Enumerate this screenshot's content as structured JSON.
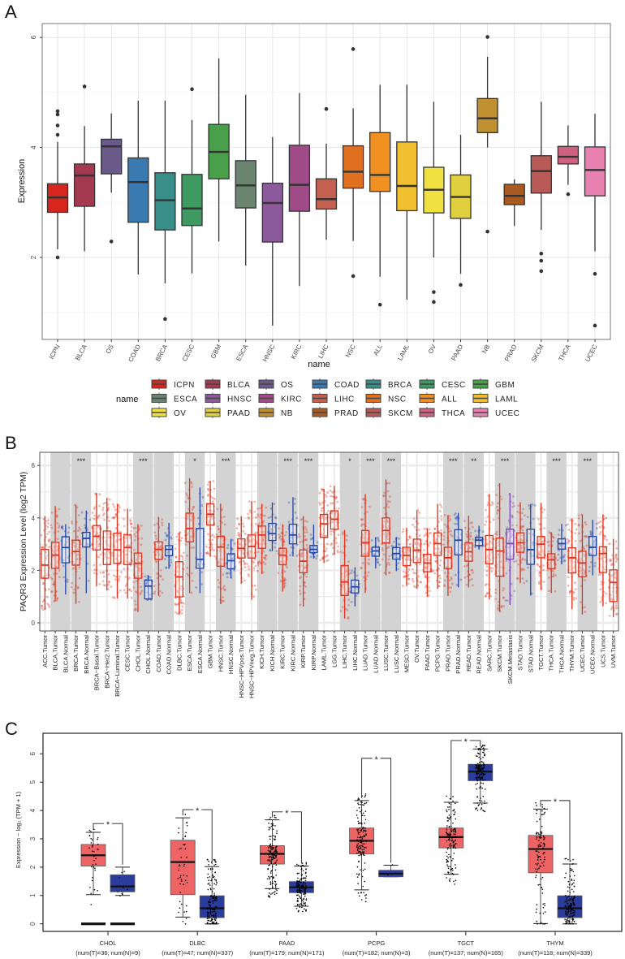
{
  "panels": {
    "a": "A",
    "b": "B",
    "c": "C"
  },
  "chart_data": [
    {
      "panel": "A",
      "type": "box",
      "xlabel": "name",
      "ylabel": "Expression",
      "ylim": [
        0.5,
        6.25
      ],
      "yticks": [
        "2",
        "4",
        "6"
      ],
      "grid": true,
      "legend": {
        "title": "name",
        "position": "bottom"
      },
      "categories": [
        "ICPN",
        "BLCA",
        "OS",
        "COAD",
        "BRCA",
        "CESC",
        "GBM",
        "ESCA",
        "HNSC",
        "KIRC",
        "LIHC",
        "NSC",
        "ALL",
        "LAML",
        "OV",
        "PAAD",
        "NB",
        "PRAD",
        "SKCM",
        "THCA",
        "UCEC"
      ],
      "colors": [
        "#d7261e",
        "#a43a50",
        "#6a5a8a",
        "#3a7ab0",
        "#3a8e8a",
        "#3e9a60",
        "#4aa04a",
        "#6a8470",
        "#8a5a9a",
        "#a04a88",
        "#c46050",
        "#e07020",
        "#f09020",
        "#f0c030",
        "#f0e040",
        "#e0d040",
        "#c09030",
        "#a85a20",
        "#b85a55",
        "#d06080",
        "#e880b0"
      ],
      "boxes": [
        {
          "whisker_low": 2.15,
          "q1": 2.82,
          "median": 3.09,
          "q3": 3.34,
          "whisker_high": 4.1,
          "outliers": [
            4.66,
            4.6,
            4.4,
            4.23,
            2.0
          ]
        },
        {
          "whisker_low": 2.11,
          "q1": 2.93,
          "median": 3.49,
          "q3": 3.7,
          "whisker_high": 4.39,
          "outliers": [
            5.11
          ]
        },
        {
          "whisker_low": 3.18,
          "q1": 3.52,
          "median": 4.02,
          "q3": 4.15,
          "whisker_high": 4.62,
          "outliers": [
            2.29
          ]
        },
        {
          "whisker_low": 1.69,
          "q1": 2.64,
          "median": 3.37,
          "q3": 3.81,
          "whisker_high": 4.85,
          "outliers": []
        },
        {
          "whisker_low": 1.53,
          "q1": 2.5,
          "median": 3.04,
          "q3": 3.54,
          "whisker_high": 4.85,
          "outliers": [
            0.88
          ]
        },
        {
          "whisker_low": 1.71,
          "q1": 2.58,
          "median": 2.89,
          "q3": 3.51,
          "whisker_high": 4.5,
          "outliers": [
            5.06
          ]
        },
        {
          "whisker_low": 2.29,
          "q1": 3.43,
          "median": 3.92,
          "q3": 4.42,
          "whisker_high": 5.62,
          "outliers": []
        },
        {
          "whisker_low": 1.85,
          "q1": 2.9,
          "median": 3.31,
          "q3": 3.76,
          "whisker_high": 4.96,
          "outliers": []
        },
        {
          "whisker_low": 0.76,
          "q1": 2.28,
          "median": 2.99,
          "q3": 3.35,
          "whisker_high": 4.19,
          "outliers": []
        },
        {
          "whisker_low": 1.48,
          "q1": 2.84,
          "median": 3.32,
          "q3": 4.04,
          "whisker_high": 4.99,
          "outliers": []
        },
        {
          "whisker_low": 2.32,
          "q1": 2.88,
          "median": 3.06,
          "q3": 3.43,
          "whisker_high": 4.07,
          "outliers": [
            4.7
          ]
        },
        {
          "whisker_low": 2.3,
          "q1": 3.26,
          "median": 3.56,
          "q3": 4.03,
          "whisker_high": 4.71,
          "outliers": [
            5.79,
            1.66
          ]
        },
        {
          "whisker_low": 1.65,
          "q1": 3.2,
          "median": 3.5,
          "q3": 4.27,
          "whisker_high": 5.14,
          "outliers": [
            1.14
          ]
        },
        {
          "whisker_low": 1.23,
          "q1": 2.85,
          "median": 3.3,
          "q3": 4.1,
          "whisker_high": 5.14,
          "outliers": []
        },
        {
          "whisker_low": 2.0,
          "q1": 2.81,
          "median": 3.23,
          "q3": 3.64,
          "whisker_high": 4.83,
          "outliers": [
            1.37,
            1.19
          ]
        },
        {
          "whisker_low": 1.7,
          "q1": 2.71,
          "median": 3.1,
          "q3": 3.5,
          "whisker_high": 4.23,
          "outliers": [
            1.5
          ]
        },
        {
          "whisker_low": 4.0,
          "q1": 4.27,
          "median": 4.53,
          "q3": 4.89,
          "whisker_high": 5.65,
          "outliers": [
            6.01,
            2.47
          ]
        },
        {
          "whisker_low": 2.57,
          "q1": 2.96,
          "median": 3.12,
          "q3": 3.33,
          "whisker_high": 3.42,
          "outliers": []
        },
        {
          "whisker_low": 2.5,
          "q1": 3.17,
          "median": 3.57,
          "q3": 3.85,
          "whisker_high": 4.83,
          "outliers": [
            2.07,
            1.94,
            1.75
          ]
        },
        {
          "whisker_low": 3.32,
          "q1": 3.7,
          "median": 3.83,
          "q3": 4.02,
          "whisker_high": 4.4,
          "outliers": [
            3.15
          ]
        },
        {
          "whisker_low": 2.11,
          "q1": 3.12,
          "median": 3.59,
          "q3": 4.01,
          "whisker_high": 4.61,
          "outliers": [
            1.7,
            0.76
          ]
        }
      ]
    },
    {
      "panel": "B",
      "type": "box",
      "ylabel": "PAQR3 Expression Level (log2 TPM)",
      "ylim": [
        -0.3,
        6.2
      ],
      "yticks": [
        "0",
        "2",
        "4",
        "6"
      ],
      "grid": true,
      "group_colors": {
        "tumor": "#e0321c",
        "normal": "#2244a8",
        "metastasis": "#7a44b0"
      },
      "shade_color": "#d3d3d3",
      "categories": [
        "ACC.Tumor",
        "BLCA.Tumor",
        "BLCA.Normal",
        "BRCA.Tumor",
        "BRCA.Normal",
        "BRCA−Basal.Tumor",
        "BRCA−Her2.Tumor",
        "BRCA−Luminal.Tumor",
        "CESC.Tumor",
        "CHOL.Tumor",
        "CHOL.Normal",
        "COAD.Tumor",
        "COAD.Normal",
        "DLBC.Tumor",
        "ESCA.Tumor",
        "ESCA.Normal",
        "GBM.Tumor",
        "HNSC.Tumor",
        "HNSC.Normal",
        "HNSC−HPVpos.Tumor",
        "HNSC−HPVneg.Tumor",
        "KICH.Tumor",
        "KICH.Normal",
        "KIRC.Tumor",
        "KIRC.Normal",
        "KIRP.Tumor",
        "KIRP.Normal",
        "LAML.Tumor",
        "LGG.Tumor",
        "LIHC.Tumor",
        "LIHC.Normal",
        "LUAD.Tumor",
        "LUAD.Normal",
        "LUSC.Tumor",
        "LUSC.Normal",
        "MESO.Tumor",
        "OV.Tumor",
        "PAAD.Tumor",
        "PCPG.Tumor",
        "PRAD.Tumor",
        "PRAD.Normal",
        "READ.Tumor",
        "READ.Normal",
        "SARC.Tumor",
        "SKCM.Tumor",
        "SKCM.Metastasis",
        "STAD.Tumor",
        "STAD.Normal",
        "TGCT.Tumor",
        "THCA.Tumor",
        "THCA.Normal",
        "THYM.Tumor",
        "UCEC.Tumor",
        "UCEC.Normal",
        "UCS.Tumor",
        "UVM.Tumor"
      ],
      "boxes": [
        [
          0.5,
          1.7,
          2.2,
          2.8,
          4.07
        ],
        [
          0.82,
          2.08,
          2.58,
          3.07,
          4.45
        ],
        [
          1.08,
          2.29,
          2.87,
          3.28,
          3.76
        ],
        [
          0.72,
          2.2,
          2.72,
          3.15,
          4.5
        ],
        [
          1.13,
          2.89,
          3.22,
          3.45,
          4.28
        ],
        [
          1.39,
          2.78,
          3.3,
          3.71,
          4.95
        ],
        [
          1.24,
          2.22,
          2.8,
          3.5,
          4.74
        ],
        [
          0.93,
          2.27,
          2.78,
          3.42,
          4.54
        ],
        [
          0.93,
          2.22,
          2.87,
          3.35,
          4.35
        ],
        [
          0.41,
          1.7,
          2.27,
          2.66,
          3.76
        ],
        [
          0.88,
          0.91,
          1.4,
          1.63,
          1.8
        ],
        [
          1.03,
          2.42,
          2.8,
          3.09,
          4.04
        ],
        [
          2.06,
          2.56,
          2.8,
          2.94,
          3.81
        ],
        [
          0.31,
          0.99,
          1.75,
          2.33,
          3.45
        ],
        [
          1.13,
          3.09,
          3.6,
          4.18,
          5.52
        ],
        [
          1.13,
          2.08,
          2.42,
          3.6,
          5.16
        ],
        [
          2.53,
          3.73,
          4.14,
          4.54,
          5.41
        ],
        [
          0.72,
          2.16,
          2.89,
          3.3,
          4.54
        ],
        [
          1.7,
          2.06,
          2.37,
          2.63,
          3.2
        ],
        [
          1.49,
          2.47,
          2.84,
          3.2,
          4.07
        ],
        [
          0.88,
          2.47,
          2.91,
          3.35,
          4.64
        ],
        [
          1.86,
          2.84,
          3.35,
          3.69,
          4.54
        ],
        [
          2.73,
          3.14,
          3.4,
          3.79,
          4.59
        ],
        [
          1.19,
          2.22,
          2.58,
          2.84,
          3.76
        ],
        [
          2.53,
          3.01,
          3.35,
          3.76,
          4.79
        ],
        [
          0.62,
          1.91,
          2.35,
          2.78,
          4.07
        ],
        [
          2.45,
          2.68,
          2.8,
          2.95,
          3.75
        ],
        [
          2.28,
          3.26,
          3.77,
          4.13,
          5.11
        ],
        [
          2.59,
          3.57,
          3.95,
          4.27,
          5.22
        ],
        [
          0.16,
          1.04,
          1.56,
          2.18,
          3.54
        ],
        [
          0.63,
          1.14,
          1.37,
          1.63,
          2.12
        ],
        [
          1.14,
          2.54,
          3.05,
          3.52,
          4.91
        ],
        [
          2.07,
          2.54,
          2.74,
          2.88,
          3.26
        ],
        [
          1.81,
          3.05,
          3.52,
          4.0,
          5.47
        ],
        [
          1.97,
          2.43,
          2.64,
          2.87,
          3.26
        ],
        [
          1.4,
          2.18,
          2.57,
          2.88,
          3.62
        ],
        [
          1.3,
          2.3,
          2.77,
          3.19,
          4.29
        ],
        [
          0.99,
          1.95,
          2.28,
          2.61,
          3.6
        ],
        [
          1.3,
          2.57,
          3.02,
          3.43,
          4.53
        ],
        [
          1.02,
          2.07,
          2.48,
          2.88,
          4.11
        ],
        [
          1.35,
          2.59,
          3.15,
          3.55,
          4.19
        ],
        [
          1.35,
          2.35,
          2.71,
          3.05,
          4.08
        ],
        [
          2.79,
          2.95,
          3.15,
          3.26,
          3.7
        ],
        [
          0.89,
          2.25,
          2.79,
          3.33,
          4.91
        ],
        [
          0.42,
          1.78,
          2.74,
          3.23,
          5.32
        ],
        [
          0.68,
          2.43,
          3.02,
          3.57,
          4.95
        ],
        [
          1.51,
          2.69,
          3.05,
          3.43,
          4.6
        ],
        [
          1.04,
          2.23,
          2.79,
          3.57,
          4.53
        ],
        [
          1.25,
          2.48,
          3.0,
          3.29,
          4.57
        ],
        [
          1.14,
          2.07,
          2.4,
          2.63,
          3.46
        ],
        [
          2.23,
          2.81,
          3.02,
          3.2,
          3.77
        ],
        [
          0.52,
          1.9,
          2.48,
          2.86,
          3.98
        ],
        [
          0.32,
          1.76,
          2.28,
          2.73,
          4.13
        ],
        [
          1.81,
          2.57,
          2.88,
          3.29,
          3.93
        ],
        [
          0.63,
          1.92,
          2.64,
          2.9,
          4.13
        ],
        [
          0.22,
          0.81,
          1.54,
          2.02,
          3.2
        ]
      ],
      "significance": [
        {
          "pair": [
            "BRCA.Tumor",
            "BRCA.Normal"
          ],
          "label": "***"
        },
        {
          "pair": [
            "CHOL.Tumor",
            "CHOL.Normal"
          ],
          "label": "***"
        },
        {
          "pair": [
            "ESCA.Tumor",
            "ESCA.Normal"
          ],
          "label": "*"
        },
        {
          "pair": [
            "HNSC.Tumor",
            "HNSC.Normal"
          ],
          "label": "***"
        },
        {
          "pair": [
            "KIRC.Tumor",
            "KIRC.Normal"
          ],
          "label": "***"
        },
        {
          "pair": [
            "KIRP.Tumor",
            "KIRP.Normal"
          ],
          "label": "***"
        },
        {
          "pair": [
            "LIHC.Tumor",
            "LIHC.Normal"
          ],
          "label": "*"
        },
        {
          "pair": [
            "LUAD.Tumor",
            "LUAD.Normal"
          ],
          "label": "***"
        },
        {
          "pair": [
            "LUSC.Tumor",
            "LUSC.Normal"
          ],
          "label": "***"
        },
        {
          "pair": [
            "PRAD.Tumor",
            "PRAD.Normal"
          ],
          "label": "***"
        },
        {
          "pair": [
            "READ.Tumor",
            "READ.Normal"
          ],
          "label": "**"
        },
        {
          "pair": [
            "SKCM.Tumor",
            "SKCM.Metastasis"
          ],
          "label": "***"
        },
        {
          "pair": [
            "THCA.Tumor",
            "THCA.Normal"
          ],
          "label": "***"
        },
        {
          "pair": [
            "UCEC.Tumor",
            "UCEC.Normal"
          ],
          "label": "***"
        },
        {
          "pair": [
            "BLCA.Tumor",
            "BLCA.Normal"
          ],
          "label": ""
        },
        {
          "pair": [
            "COAD.Tumor",
            "COAD.Normal"
          ],
          "label": ""
        },
        {
          "pair": [
            "KICH.Tumor",
            "KICH.Normal"
          ],
          "label": ""
        },
        {
          "pair": [
            "STAD.Tumor",
            "STAD.Normal"
          ],
          "label": ""
        }
      ]
    },
    {
      "panel": "C",
      "type": "box",
      "ylabel": "Expression − log₂ (TPM + 1)",
      "ylim": [
        -0.27,
        6.7
      ],
      "yticks": [
        "0",
        "1",
        "2",
        "3",
        "4",
        "5",
        "6"
      ],
      "group_colors": {
        "tumor": "#ee6464",
        "normal": "#2a3c9c"
      },
      "significance_color": "#e8281e",
      "categories": [
        {
          "name": "CHOL",
          "counts": "(num(T)=36; num(N)=9)",
          "n_tumor": 36,
          "n_normal": 9,
          "zero_cluster": true,
          "tumor": [
            1.03,
            2.04,
            2.42,
            2.8,
            3.23
          ],
          "normal": [
            1.0,
            1.13,
            1.32,
            1.73,
            2.0
          ],
          "sig_level": 3.54,
          "sig": "*"
        },
        {
          "name": "DLBC",
          "counts": "(num(T)=47; num(N)=337)",
          "n_tumor": 47,
          "n_normal": 337,
          "zero_cluster": false,
          "tumor": [
            0.24,
            1.03,
            2.18,
            2.95,
            3.74
          ],
          "normal": [
            0.0,
            0.22,
            0.55,
            0.99,
            2.02
          ],
          "sig_level": 4.03,
          "sig": "*"
        },
        {
          "name": "PAAD",
          "counts": "(num(T)=179; num(N)=171)",
          "n_tumor": 179,
          "n_normal": 171,
          "zero_cluster": false,
          "tumor": [
            1.24,
            2.11,
            2.47,
            2.76,
            3.67
          ],
          "normal": [
            0.62,
            1.1,
            1.29,
            1.49,
            2.04
          ],
          "sig_level": 3.95,
          "sig": "*"
        },
        {
          "name": "PCPG",
          "counts": "(num(T)=182; num(N)=3)",
          "n_tumor": 182,
          "n_normal": 3,
          "zero_cluster": false,
          "tumor": [
            1.2,
            2.47,
            2.93,
            3.38,
            4.35
          ],
          "normal": [
            1.66,
            1.66,
            1.77,
            1.89,
            2.07
          ],
          "sig_level": 5.84,
          "sig": "*"
        },
        {
          "name": "TGCT",
          "counts": "(num(T)=137; num(N)=165)",
          "n_tumor": 137,
          "n_normal": 165,
          "zero_cluster": false,
          "tumor": [
            1.75,
            2.68,
            3.06,
            3.38,
            4.29
          ],
          "normal": [
            4.26,
            5.05,
            5.37,
            5.63,
            6.17
          ],
          "sig_level": 6.47,
          "sig": "*"
        },
        {
          "name": "THYM",
          "counts": "(num(T)=118; num(N)=339)",
          "n_tumor": 118,
          "n_normal": 339,
          "zero_cluster": false,
          "tumor": [
            0.01,
            1.8,
            2.64,
            3.12,
            4.05
          ],
          "normal": [
            0.0,
            0.22,
            0.55,
            0.99,
            2.11
          ],
          "sig_level": 4.35,
          "sig": "*"
        }
      ]
    }
  ]
}
